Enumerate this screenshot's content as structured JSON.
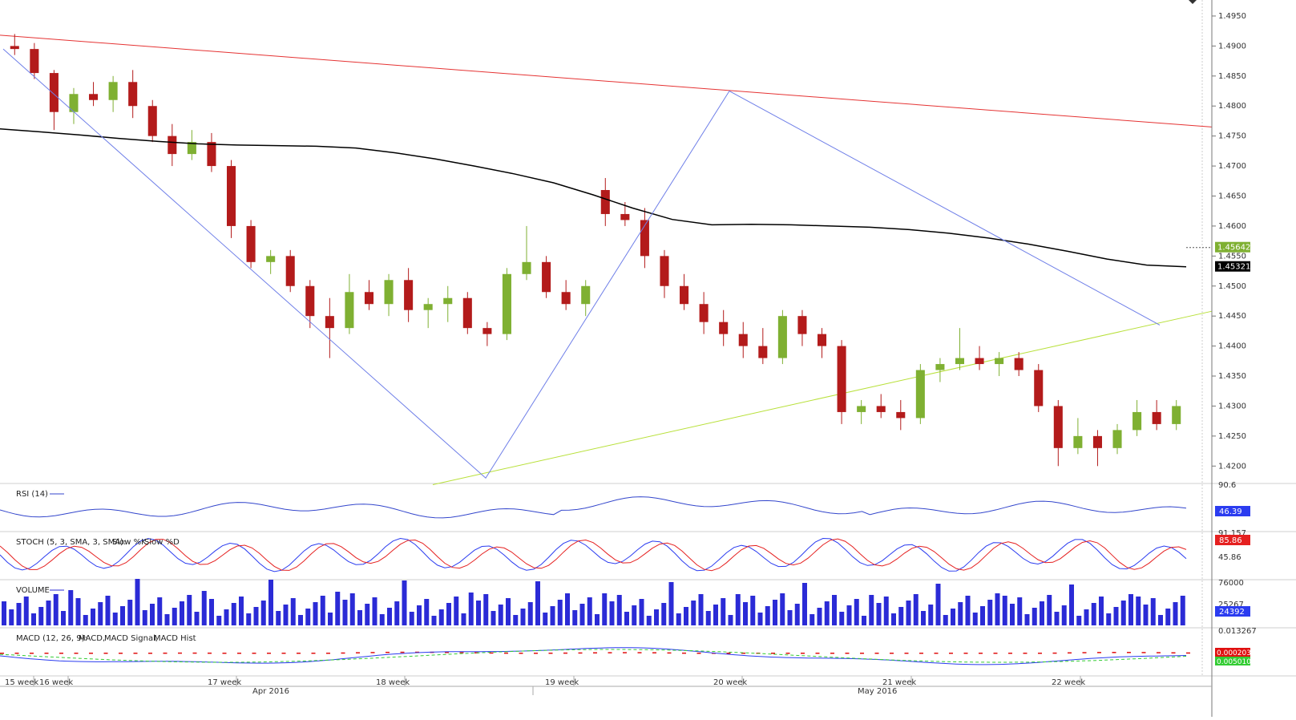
{
  "instrument_note": "",
  "chart_data": {
    "type": "candlestick",
    "main": {
      "price_axis_ticks": [
        "1.4950",
        "1.4900",
        "1.4850",
        "1.4800",
        "1.4750",
        "1.4700",
        "1.4650",
        "1.4600",
        "1.4550",
        "1.4500",
        "1.4450",
        "1.4400",
        "1.4350",
        "1.4300",
        "1.4250",
        "1.4200"
      ],
      "ylim": [
        1.4175,
        1.497
      ],
      "current_price": "1.45642",
      "ma_value": "1.45321",
      "candles": [
        [
          1.49,
          1.492,
          1.4885,
          1.4895
        ],
        [
          1.4895,
          1.4905,
          1.4845,
          1.4855
        ],
        [
          1.4855,
          1.486,
          1.476,
          1.479
        ],
        [
          1.479,
          1.483,
          1.477,
          1.482
        ],
        [
          1.482,
          1.484,
          1.48,
          1.481
        ],
        [
          1.481,
          1.485,
          1.479,
          1.484
        ],
        [
          1.484,
          1.486,
          1.478,
          1.48
        ],
        [
          1.48,
          1.481,
          1.474,
          1.475
        ],
        [
          1.475,
          1.477,
          1.47,
          1.472
        ],
        [
          1.472,
          1.476,
          1.471,
          1.474
        ],
        [
          1.474,
          1.4755,
          1.469,
          1.47
        ],
        [
          1.47,
          1.471,
          1.458,
          1.46
        ],
        [
          1.46,
          1.461,
          1.453,
          1.454
        ],
        [
          1.454,
          1.456,
          1.452,
          1.455
        ],
        [
          1.455,
          1.456,
          1.449,
          1.45
        ],
        [
          1.45,
          1.451,
          1.443,
          1.445
        ],
        [
          1.445,
          1.448,
          1.438,
          1.443
        ],
        [
          1.443,
          1.452,
          1.442,
          1.449
        ],
        [
          1.449,
          1.451,
          1.446,
          1.447
        ],
        [
          1.447,
          1.452,
          1.445,
          1.451
        ],
        [
          1.451,
          1.453,
          1.444,
          1.446
        ],
        [
          1.446,
          1.448,
          1.443,
          1.447
        ],
        [
          1.447,
          1.45,
          1.444,
          1.448
        ],
        [
          1.448,
          1.449,
          1.442,
          1.443
        ],
        [
          1.443,
          1.444,
          1.44,
          1.442
        ],
        [
          1.442,
          1.453,
          1.441,
          1.452
        ],
        [
          1.452,
          1.46,
          1.451,
          1.454
        ],
        [
          1.454,
          1.455,
          1.448,
          1.449
        ],
        [
          1.449,
          1.451,
          1.446,
          1.447
        ],
        [
          1.447,
          1.451,
          1.445,
          1.45
        ],
        [
          1.466,
          1.468,
          1.46,
          1.462
        ],
        [
          1.462,
          1.464,
          1.46,
          1.461
        ],
        [
          1.461,
          1.463,
          1.453,
          1.455
        ],
        [
          1.455,
          1.456,
          1.448,
          1.45
        ],
        [
          1.45,
          1.452,
          1.446,
          1.447
        ],
        [
          1.447,
          1.449,
          1.442,
          1.444
        ],
        [
          1.444,
          1.446,
          1.44,
          1.442
        ],
        [
          1.442,
          1.444,
          1.438,
          1.44
        ],
        [
          1.44,
          1.443,
          1.437,
          1.438
        ],
        [
          1.438,
          1.446,
          1.437,
          1.445
        ],
        [
          1.445,
          1.446,
          1.44,
          1.442
        ],
        [
          1.442,
          1.443,
          1.438,
          1.44
        ],
        [
          1.44,
          1.441,
          1.427,
          1.429
        ],
        [
          1.429,
          1.431,
          1.427,
          1.43
        ],
        [
          1.43,
          1.432,
          1.428,
          1.429
        ],
        [
          1.429,
          1.431,
          1.426,
          1.428
        ],
        [
          1.428,
          1.437,
          1.427,
          1.436
        ],
        [
          1.436,
          1.438,
          1.434,
          1.437
        ],
        [
          1.437,
          1.443,
          1.436,
          1.438
        ],
        [
          1.438,
          1.44,
          1.436,
          1.437
        ],
        [
          1.437,
          1.439,
          1.435,
          1.438
        ],
        [
          1.438,
          1.439,
          1.435,
          1.436
        ],
        [
          1.436,
          1.437,
          1.429,
          1.43
        ],
        [
          1.43,
          1.431,
          1.42,
          1.423
        ],
        [
          1.423,
          1.428,
          1.422,
          1.425
        ],
        [
          1.425,
          1.426,
          1.42,
          1.423
        ],
        [
          1.423,
          1.427,
          1.422,
          1.426
        ],
        [
          1.426,
          1.431,
          1.425,
          1.429
        ],
        [
          1.429,
          1.431,
          1.426,
          1.427
        ],
        [
          1.427,
          1.431,
          1.426,
          1.43
        ]
      ],
      "ma_points": [
        1.4762,
        1.4757,
        1.4752,
        1.4746,
        1.4741,
        1.4737,
        1.4735,
        1.4734,
        1.4733,
        1.473,
        1.4722,
        1.4712,
        1.47,
        1.4687,
        1.4672,
        1.4652,
        1.463,
        1.4611,
        1.4602,
        1.4603,
        1.4602,
        1.46,
        1.4598,
        1.4594,
        1.4588,
        1.458,
        1.457,
        1.4558,
        1.4545,
        1.4535,
        1.4532
      ],
      "trend_top": [
        1.4918,
        1.4765
      ],
      "trend_bottom": [
        1.4169,
        1.4458
      ]
    },
    "rsi": {
      "label": "RSI (14)",
      "tick": "90.6",
      "value": "46.39"
    },
    "stoch": {
      "label": "STOCH (5, 3, SMA, 3, SMA):",
      "k_label": "Slow %K,",
      "d_label": "Slow %D",
      "ticks": [
        "91.157",
        "45.86"
      ],
      "value": "85.86"
    },
    "volume": {
      "label": "VOLUME",
      "ticks": [
        "76000",
        "25267"
      ],
      "value": "24392"
    },
    "macd": {
      "label": "MACD (12, 26, 9):",
      "macd_label": "MACD,",
      "signal_label": "MACD Signal,",
      "hist_label": "MACD Hist",
      "tick": "0.013267",
      "value_top": "0.0002033",
      "value_bottom": "0.0050103"
    },
    "x_week_labels": [
      "15 week",
      "16 week",
      "17 week",
      "18 week",
      "19 week",
      "20 week",
      "21 week",
      "22 week"
    ],
    "x_month_labels": [
      "Apr 2016",
      "May 2016"
    ],
    "colors": {
      "bull": "#7fb032",
      "bear": "#b31b1b",
      "ma": "#000000",
      "top_line": "#e53333",
      "bottom_line": "#b8e03a",
      "zigzag": "#6f7fe8",
      "rsi": "#3346cc",
      "stoch_k": "#2b3cf0",
      "stoch_d": "#e52020",
      "volume": "#2b2bd6",
      "macd": "#2b3cf0",
      "signal": "#33cc33",
      "hist": "#e01010",
      "price_tag": "#7fb032",
      "ma_tag": "#000000",
      "rsi_tag": "#2b3cf0",
      "vol_tag": "#2b3cf0"
    }
  }
}
